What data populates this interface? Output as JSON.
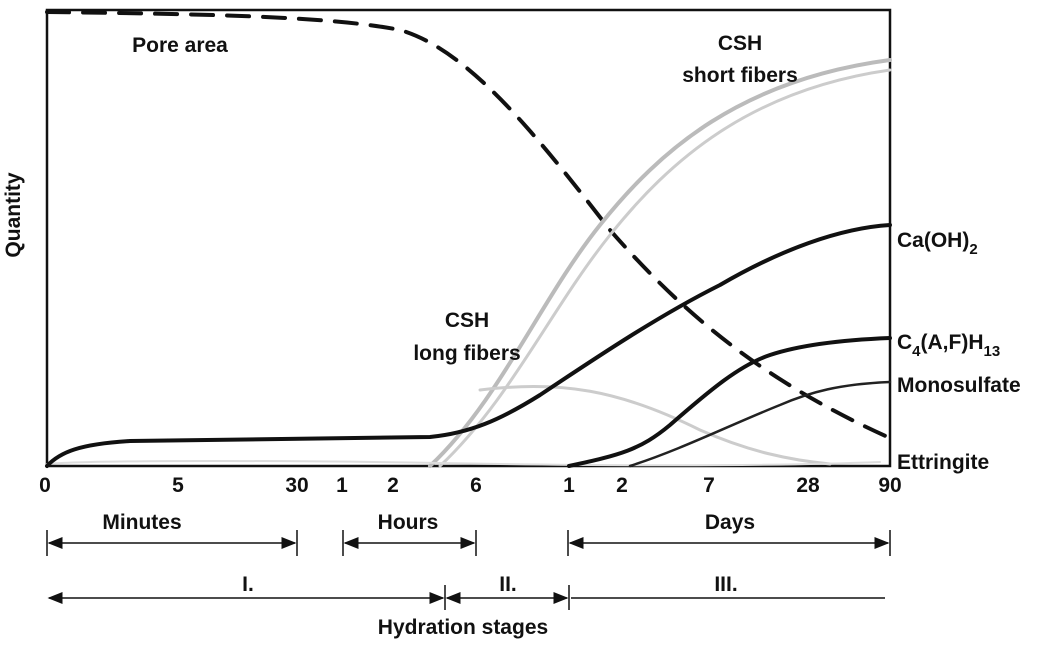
{
  "y_axis_label": "Quantity",
  "curve_labels": {
    "pore_area": "Pore area",
    "csh_short": [
      "CSH",
      "short fibers"
    ],
    "csh_long": [
      "CSH",
      "long fibers"
    ],
    "caoh2": [
      "Ca(OH)",
      "2"
    ],
    "c4afh13": [
      "C",
      "4",
      "(A,F)H",
      "13"
    ],
    "monosulfate": "Monosulfate",
    "ettringite": "Ettringite"
  },
  "ticks": [
    "0",
    "5",
    "30",
    "1",
    "2",
    "6",
    "1",
    "2",
    "7",
    "28",
    "90"
  ],
  "periods": [
    "Minutes",
    "Hours",
    "Days"
  ],
  "stages": [
    "I.",
    "II.",
    "III."
  ],
  "stages_label": "Hydration stages"
}
